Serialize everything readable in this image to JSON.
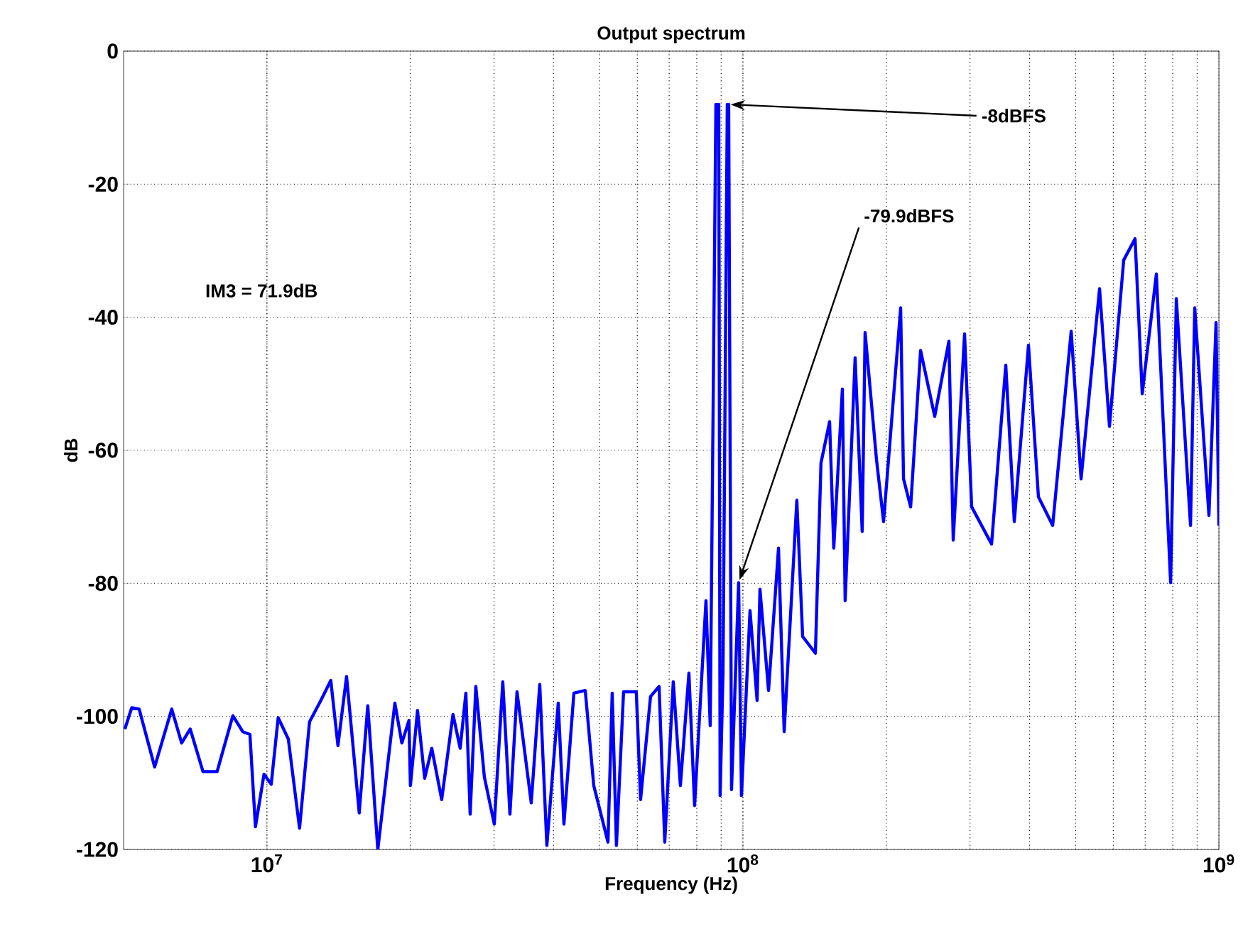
{
  "chart_data": {
    "type": "line",
    "title": "Output spectrum",
    "xlabel": "Frequency (Hz)",
    "ylabel": "dB",
    "log": "x",
    "grid": true,
    "line_style": "solid",
    "xlim": [
      5000000,
      1000000000
    ],
    "ylim": [
      -120,
      0
    ],
    "xticks": [
      {
        "value": 10000000,
        "label": "10$^{7}$"
      },
      {
        "value": 100000000,
        "label": "10$^{8}$"
      },
      {
        "value": 1000000000,
        "label": "10$^{9}$"
      }
    ],
    "yticks": [
      -120,
      -100,
      -80,
      -60,
      -40,
      -20,
      0
    ],
    "annotations": [
      {
        "text": "-8dBFS",
        "x": 93000000,
        "y": -8
      },
      {
        "text": "-79.9dBFS",
        "x": 97950000,
        "y": -79.9
      },
      "IM3 = 71.9dB"
    ],
    "series": [
      {
        "color": "#0000ff",
        "x": [
          5030000,
          5200000,
          5390000,
          5810000,
          6310000,
          6620000,
          6900000,
          7340000,
          7860000,
          8480000,
          8900000,
          9210000,
          9460000,
          9860000,
          10210000,
          10560000,
          11090000,
          11710000,
          12290000,
          12980000,
          13620000,
          14100000,
          14700000,
          15630000,
          16290000,
          17100000,
          18570000,
          19210000,
          19880000,
          20020000,
          20720000,
          21450000,
          22200000,
          23290000,
          24600000,
          25470000,
          26180000,
          26730000,
          27470000,
          28630000,
          30040000,
          31300000,
          32400000,
          33530000,
          35920000,
          37430000,
          38740000,
          40930000,
          42070000,
          44150000,
          46640000,
          48600000,
          52060000,
          53140000,
          54240000,
          56140000,
          59710000,
          60960000,
          63970000,
          66670000,
          68520000,
          71410000,
          73910000,
          77030000,
          79170000,
          83640000,
          85370000,
          87750000,
          88970000,
          89570000,
          90820000,
          92720000,
          93350000,
          94650000,
          97950000,
          99310000,
          103500000,
          107100000,
          108600000,
          113200000,
          118800000,
          122100000,
          129800000,
          133500000,
          142000000,
          145900000,
          152100000,
          155200000,
          161800000,
          164000000,
          172100000,
          178100000,
          180600000,
          190800000,
          197500000,
          214500000,
          217500000,
          225100000,
          236200000,
          252900000,
          270900000,
          276600000,
          292200000,
          302400000,
          333000000,
          356700000,
          371700000,
          398100000,
          417700000,
          447500000,
          489400000,
          513400000,
          561400000,
          589000000,
          631000000,
          666700000,
          690100000,
          739100000,
          791800000,
          813800000,
          871700000,
          889700000,
          953000000,
          986300000,
          1000000000
        ],
        "values": [
          -101.9,
          -98.7,
          -98.9,
          -107.6,
          -98.9,
          -104,
          -101.9,
          -108.3,
          -108.3,
          -99.9,
          -102.3,
          -102.7,
          -116.6,
          -108.7,
          -110.2,
          -100.2,
          -103.4,
          -116.8,
          -100.8,
          -97.6,
          -94.6,
          -104.4,
          -94,
          -114.5,
          -98.4,
          -120,
          -98,
          -104,
          -100.6,
          -110.4,
          -99.1,
          -109.3,
          -104.8,
          -112.5,
          -99.7,
          -104.8,
          -96.5,
          -114.7,
          -95.5,
          -109.1,
          -116.2,
          -94.8,
          -114.7,
          -96.3,
          -113,
          -95.2,
          -119.4,
          -98,
          -116.2,
          -96.5,
          -96.1,
          -110.4,
          -118.9,
          -96.5,
          -119.4,
          -96.3,
          -96.3,
          -112.5,
          -97,
          -95.5,
          -118.9,
          -94.8,
          -110.4,
          -93.5,
          -113.4,
          -82.6,
          -101.4,
          -8,
          -8,
          -111.9,
          -93.5,
          -8,
          -8,
          -111,
          -79.9,
          -111.9,
          -84.1,
          -97.6,
          -80.9,
          -96.1,
          -74.7,
          -102.3,
          -67.5,
          -88,
          -90.5,
          -61.9,
          -55.7,
          -74.7,
          -50.8,
          -82.6,
          -46.1,
          -72.2,
          -42.3,
          -61.3,
          -70.7,
          -38.6,
          -64.3,
          -68.5,
          -45,
          -54.9,
          -43.6,
          -73.5,
          -42.5,
          -68.5,
          -74.1,
          -47.2,
          -70.7,
          -44.2,
          -67,
          -71.3,
          -42.1,
          -64.3,
          -35.7,
          -56.4,
          -31.4,
          -28.2,
          -51.5,
          -33.5,
          -79.9,
          -37.2,
          -71.3,
          -38.6,
          -69.8,
          -40.8,
          -71.3
        ]
      }
    ]
  }
}
